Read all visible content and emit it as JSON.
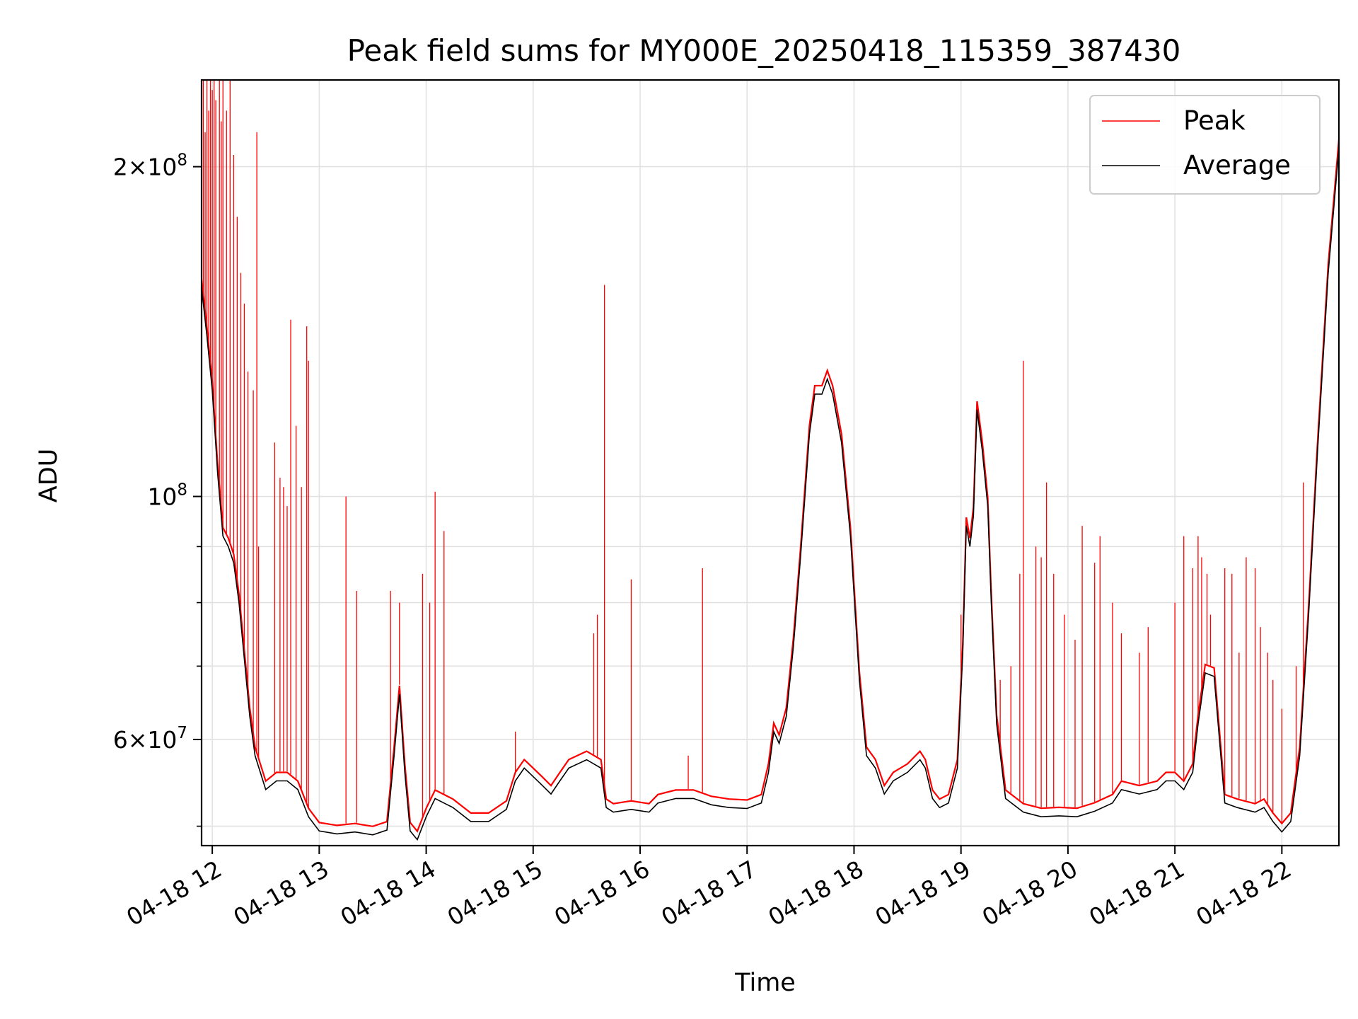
{
  "chart_data": {
    "type": "line",
    "title": "Peak field sums for MY000E_20250418_115359_387430",
    "xlabel": "Time",
    "ylabel": "ADU",
    "y_scale": "log",
    "grid": true,
    "legend_placement": "top-right",
    "xlim": [
      "2025-04-18 11:54",
      "2025-04-18 22:32"
    ],
    "ylim": [
      48000000,
      240000000
    ],
    "x_ticks": [
      "2025-04-18 12:00",
      "2025-04-18 13:00",
      "2025-04-18 14:00",
      "2025-04-18 15:00",
      "2025-04-18 16:00",
      "2025-04-18 17:00",
      "2025-04-18 18:00",
      "2025-04-18 19:00",
      "2025-04-18 20:00",
      "2025-04-18 21:00",
      "2025-04-18 22:00"
    ],
    "x_tick_labels": [
      "04-18 12",
      "04-18 13",
      "04-18 14",
      "04-18 15",
      "04-18 16",
      "04-18 17",
      "04-18 18",
      "04-18 19",
      "04-18 20",
      "04-18 21",
      "04-18 22"
    ],
    "y_major_ticks": [
      {
        "value": 60000000,
        "label_mantissa": "6",
        "label_exp": "7"
      },
      {
        "value": 100000000,
        "label_mantissa": "",
        "label_exp": "8"
      },
      {
        "value": 200000000,
        "label_mantissa": "2",
        "label_exp": "8"
      }
    ],
    "y_minor_grid": [
      50000000,
      70000000,
      80000000,
      90000000
    ],
    "series": [
      {
        "name": "Average",
        "color": "#000000",
        "points": [
          [
            "2025-04-18 11:54",
            155000000
          ],
          [
            "2025-04-18 11:57",
            140000000
          ],
          [
            "2025-04-18 12:00",
            125000000
          ],
          [
            "2025-04-18 12:03",
            105000000
          ],
          [
            "2025-04-18 12:06",
            92000000
          ],
          [
            "2025-04-18 12:09",
            90000000
          ],
          [
            "2025-04-18 12:12",
            87000000
          ],
          [
            "2025-04-18 12:15",
            80000000
          ],
          [
            "2025-04-18 12:18",
            71000000
          ],
          [
            "2025-04-18 12:21",
            63000000
          ],
          [
            "2025-04-18 12:24",
            58000000
          ],
          [
            "2025-04-18 12:30",
            54000000
          ],
          [
            "2025-04-18 12:36",
            55000000
          ],
          [
            "2025-04-18 12:42",
            55000000
          ],
          [
            "2025-04-18 12:48",
            54000000
          ],
          [
            "2025-04-18 12:54",
            51000000
          ],
          [
            "2025-04-18 13:00",
            49500000
          ],
          [
            "2025-04-18 13:10",
            49200000
          ],
          [
            "2025-04-18 13:20",
            49400000
          ],
          [
            "2025-04-18 13:30",
            49100000
          ],
          [
            "2025-04-18 13:38",
            49600000
          ],
          [
            "2025-04-18 13:42",
            58000000
          ],
          [
            "2025-04-18 13:45",
            66000000
          ],
          [
            "2025-04-18 13:48",
            56000000
          ],
          [
            "2025-04-18 13:51",
            49500000
          ],
          [
            "2025-04-18 13:55",
            48600000
          ],
          [
            "2025-04-18 14:00",
            51000000
          ],
          [
            "2025-04-18 14:05",
            53000000
          ],
          [
            "2025-04-18 14:15",
            52000000
          ],
          [
            "2025-04-18 14:25",
            50500000
          ],
          [
            "2025-04-18 14:35",
            50500000
          ],
          [
            "2025-04-18 14:45",
            51800000
          ],
          [
            "2025-04-18 14:50",
            55000000
          ],
          [
            "2025-04-18 14:55",
            56500000
          ],
          [
            "2025-04-18 15:00",
            55500000
          ],
          [
            "2025-04-18 15:05",
            54500000
          ],
          [
            "2025-04-18 15:10",
            53500000
          ],
          [
            "2025-04-18 15:15",
            55000000
          ],
          [
            "2025-04-18 15:20",
            56500000
          ],
          [
            "2025-04-18 15:30",
            57500000
          ],
          [
            "2025-04-18 15:38",
            56500000
          ],
          [
            "2025-04-18 15:41",
            52000000
          ],
          [
            "2025-04-18 15:45",
            51500000
          ],
          [
            "2025-04-18 15:55",
            51800000
          ],
          [
            "2025-04-18 16:05",
            51500000
          ],
          [
            "2025-04-18 16:10",
            52500000
          ],
          [
            "2025-04-18 16:20",
            53000000
          ],
          [
            "2025-04-18 16:30",
            53000000
          ],
          [
            "2025-04-18 16:40",
            52300000
          ],
          [
            "2025-04-18 16:50",
            52000000
          ],
          [
            "2025-04-18 17:00",
            51900000
          ],
          [
            "2025-04-18 17:08",
            52500000
          ],
          [
            "2025-04-18 17:12",
            56000000
          ],
          [
            "2025-04-18 17:15",
            61000000
          ],
          [
            "2025-04-18 17:18",
            59500000
          ],
          [
            "2025-04-18 17:22",
            63000000
          ],
          [
            "2025-04-18 17:26",
            73000000
          ],
          [
            "2025-04-18 17:30",
            88000000
          ],
          [
            "2025-04-18 17:35",
            114000000
          ],
          [
            "2025-04-18 17:38",
            124000000
          ],
          [
            "2025-04-18 17:42",
            124000000
          ],
          [
            "2025-04-18 17:45",
            128000000
          ],
          [
            "2025-04-18 17:48",
            124000000
          ],
          [
            "2025-04-18 17:53",
            112000000
          ],
          [
            "2025-04-18 17:58",
            92000000
          ],
          [
            "2025-04-18 18:03",
            68000000
          ],
          [
            "2025-04-18 18:07",
            58000000
          ],
          [
            "2025-04-18 18:12",
            56500000
          ],
          [
            "2025-04-18 18:17",
            53500000
          ],
          [
            "2025-04-18 18:22",
            55000000
          ],
          [
            "2025-04-18 18:30",
            56000000
          ],
          [
            "2025-04-18 18:37",
            57500000
          ],
          [
            "2025-04-18 18:40",
            56500000
          ],
          [
            "2025-04-18 18:44",
            53000000
          ],
          [
            "2025-04-18 18:48",
            52000000
          ],
          [
            "2025-04-18 18:53",
            52500000
          ],
          [
            "2025-04-18 18:58",
            56500000
          ],
          [
            "2025-04-18 19:01",
            72000000
          ],
          [
            "2025-04-18 19:03",
            94000000
          ],
          [
            "2025-04-18 19:05",
            90000000
          ],
          [
            "2025-04-18 19:07",
            96000000
          ],
          [
            "2025-04-18 19:09",
            120000000
          ],
          [
            "2025-04-18 19:12",
            110000000
          ],
          [
            "2025-04-18 19:15",
            98000000
          ],
          [
            "2025-04-18 19:17",
            80000000
          ],
          [
            "2025-04-18 19:20",
            62000000
          ],
          [
            "2025-04-18 19:25",
            53000000
          ],
          [
            "2025-04-18 19:35",
            51500000
          ],
          [
            "2025-04-18 19:45",
            51000000
          ],
          [
            "2025-04-18 19:55",
            51100000
          ],
          [
            "2025-04-18 20:05",
            51000000
          ],
          [
            "2025-04-18 20:15",
            51600000
          ],
          [
            "2025-04-18 20:25",
            52500000
          ],
          [
            "2025-04-18 20:30",
            54000000
          ],
          [
            "2025-04-18 20:40",
            53500000
          ],
          [
            "2025-04-18 20:50",
            54000000
          ],
          [
            "2025-04-18 20:55",
            55000000
          ],
          [
            "2025-04-18 21:00",
            55000000
          ],
          [
            "2025-04-18 21:05",
            54000000
          ],
          [
            "2025-04-18 21:10",
            56000000
          ],
          [
            "2025-04-18 21:13",
            62000000
          ],
          [
            "2025-04-18 21:17",
            69000000
          ],
          [
            "2025-04-18 21:22",
            68500000
          ],
          [
            "2025-04-18 21:25",
            60000000
          ],
          [
            "2025-04-18 21:28",
            52500000
          ],
          [
            "2025-04-18 21:35",
            52000000
          ],
          [
            "2025-04-18 21:45",
            51500000
          ],
          [
            "2025-04-18 21:50",
            52000000
          ],
          [
            "2025-04-18 21:55",
            50500000
          ],
          [
            "2025-04-18 22:00",
            49400000
          ],
          [
            "2025-04-18 22:05",
            50500000
          ],
          [
            "2025-04-18 22:10",
            58000000
          ],
          [
            "2025-04-18 22:15",
            78000000
          ],
          [
            "2025-04-18 22:20",
            110000000
          ],
          [
            "2025-04-18 22:26",
            160000000
          ],
          [
            "2025-04-18 22:32",
            208000000
          ]
        ]
      },
      {
        "name": "Peak",
        "color": "#ff0000",
        "spikes": [
          [
            "2025-04-18 11:55",
            240000000
          ],
          [
            "2025-04-18 11:56",
            215000000
          ],
          [
            "2025-04-18 11:57",
            240000000
          ],
          [
            "2025-04-18 11:58",
            225000000
          ],
          [
            "2025-04-18 11:59",
            240000000
          ],
          [
            "2025-04-18 12:00",
            235000000
          ],
          [
            "2025-04-18 12:01",
            240000000
          ],
          [
            "2025-04-18 12:02",
            230000000
          ],
          [
            "2025-04-18 12:04",
            240000000
          ],
          [
            "2025-04-18 12:05",
            220000000
          ],
          [
            "2025-04-18 12:06",
            240000000
          ],
          [
            "2025-04-18 12:08",
            225000000
          ],
          [
            "2025-04-18 12:10",
            240000000
          ],
          [
            "2025-04-18 12:12",
            205000000
          ],
          [
            "2025-04-18 12:14",
            180000000
          ],
          [
            "2025-04-18 12:16",
            160000000
          ],
          [
            "2025-04-18 12:18",
            150000000
          ],
          [
            "2025-04-18 12:20",
            130000000
          ],
          [
            "2025-04-18 12:23",
            125000000
          ],
          [
            "2025-04-18 12:25",
            215000000
          ],
          [
            "2025-04-18 12:26",
            90000000
          ],
          [
            "2025-04-18 12:35",
            112000000
          ],
          [
            "2025-04-18 12:38",
            104000000
          ],
          [
            "2025-04-18 12:40",
            102000000
          ],
          [
            "2025-04-18 12:42",
            98000000
          ],
          [
            "2025-04-18 12:44",
            145000000
          ],
          [
            "2025-04-18 12:47",
            116000000
          ],
          [
            "2025-04-18 12:50",
            102000000
          ],
          [
            "2025-04-18 12:53",
            143000000
          ],
          [
            "2025-04-18 12:54",
            133000000
          ],
          [
            "2025-04-18 13:15",
            100000000
          ],
          [
            "2025-04-18 13:21",
            82000000
          ],
          [
            "2025-04-18 13:40",
            82000000
          ],
          [
            "2025-04-18 13:45",
            80000000
          ],
          [
            "2025-04-18 13:58",
            85000000
          ],
          [
            "2025-04-18 14:02",
            80000000
          ],
          [
            "2025-04-18 14:05",
            101000000
          ],
          [
            "2025-04-18 14:10",
            93000000
          ],
          [
            "2025-04-18 14:50",
            61000000
          ],
          [
            "2025-04-18 15:34",
            75000000
          ],
          [
            "2025-04-18 15:36",
            78000000
          ],
          [
            "2025-04-18 15:40",
            156000000
          ],
          [
            "2025-04-18 15:55",
            84000000
          ],
          [
            "2025-04-18 16:35",
            86000000
          ],
          [
            "2025-04-18 16:27",
            58000000
          ],
          [
            "2025-04-18 19:00",
            78000000
          ],
          [
            "2025-04-18 19:22",
            68000000
          ],
          [
            "2025-04-18 19:28",
            70000000
          ],
          [
            "2025-04-18 19:33",
            85000000
          ],
          [
            "2025-04-18 19:35",
            133000000
          ],
          [
            "2025-04-18 19:42",
            90000000
          ],
          [
            "2025-04-18 19:45",
            88000000
          ],
          [
            "2025-04-18 19:48",
            103000000
          ],
          [
            "2025-04-18 19:52",
            85000000
          ],
          [
            "2025-04-18 19:58",
            78000000
          ],
          [
            "2025-04-18 20:04",
            74000000
          ],
          [
            "2025-04-18 20:08",
            94000000
          ],
          [
            "2025-04-18 20:15",
            87000000
          ],
          [
            "2025-04-18 20:18",
            92000000
          ],
          [
            "2025-04-18 20:25",
            80000000
          ],
          [
            "2025-04-18 20:30",
            75000000
          ],
          [
            "2025-04-18 20:40",
            72000000
          ],
          [
            "2025-04-18 20:45",
            76000000
          ],
          [
            "2025-04-18 21:00",
            80000000
          ],
          [
            "2025-04-18 21:05",
            92000000
          ],
          [
            "2025-04-18 21:10",
            86000000
          ],
          [
            "2025-04-18 21:13",
            92000000
          ],
          [
            "2025-04-18 21:15",
            88000000
          ],
          [
            "2025-04-18 21:18",
            85000000
          ],
          [
            "2025-04-18 21:20",
            78000000
          ],
          [
            "2025-04-18 21:28",
            86000000
          ],
          [
            "2025-04-18 21:32",
            85000000
          ],
          [
            "2025-04-18 21:36",
            72000000
          ],
          [
            "2025-04-18 21:40",
            88000000
          ],
          [
            "2025-04-18 21:45",
            86000000
          ],
          [
            "2025-04-18 21:48",
            76000000
          ],
          [
            "2025-04-18 21:52",
            72000000
          ],
          [
            "2025-04-18 21:55",
            68000000
          ],
          [
            "2025-04-18 22:00",
            64000000
          ],
          [
            "2025-04-18 22:08",
            70000000
          ],
          [
            "2025-04-18 22:12",
            103000000
          ]
        ]
      }
    ]
  }
}
